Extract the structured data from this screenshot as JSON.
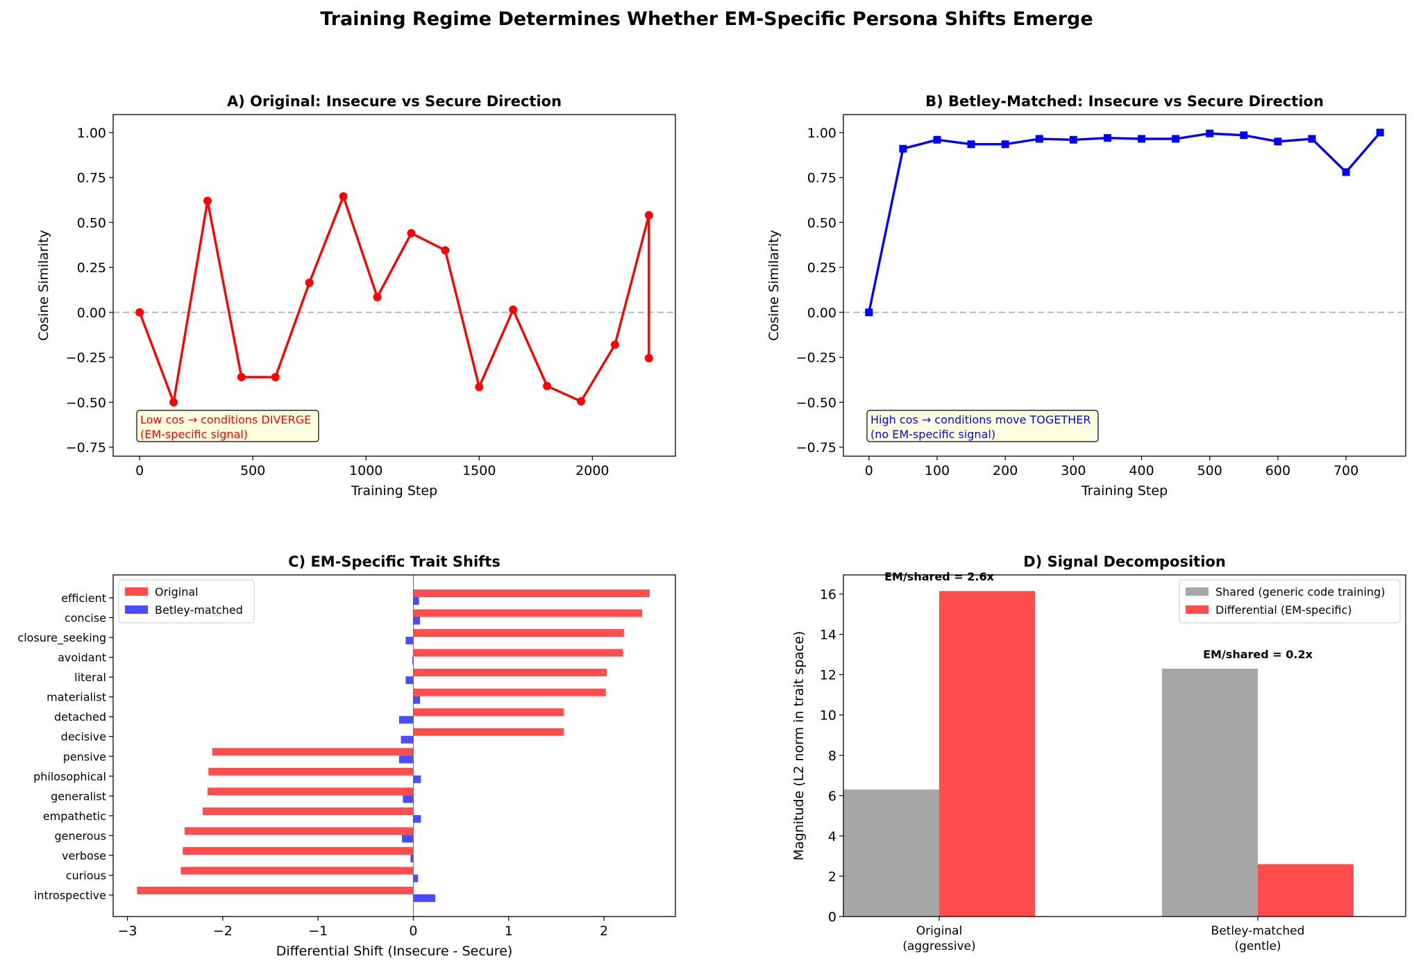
{
  "figure_title": "Training Regime Determines Whether EM-Specific Persona Shifts Emerge",
  "colors": {
    "red": "#ff0000",
    "blue": "#0000ff",
    "bar_red": "#ff4c4c",
    "bar_blue": "#4c4cff",
    "gray": "#a6a6a6",
    "zero_line": "#bfbfbf",
    "note_bg": "#ffffe0"
  },
  "chart_data": [
    {
      "id": "A",
      "type": "line",
      "title": "A) Original: Insecure vs Secure Direction",
      "xlabel": "Training Step",
      "ylabel": "Cosine Similarity",
      "xlim": [
        -117,
        2367
      ],
      "ylim": [
        -0.8,
        1.1
      ],
      "xticks": [
        0,
        500,
        1000,
        1500,
        2000
      ],
      "yticks": [
        1.0,
        0.75,
        0.5,
        0.25,
        0.0,
        -0.25,
        -0.5,
        -0.75
      ],
      "ytick_labels": [
        "1.00",
        "0.75",
        "0.50",
        "0.25",
        "0.00",
        "−0.25",
        "−0.50",
        "−0.75"
      ],
      "marker": "circle",
      "color": "#ff0000",
      "x": [
        0,
        150,
        300,
        450,
        600,
        750,
        900,
        1050,
        1200,
        1350,
        1500,
        1650,
        1800,
        1950,
        2100,
        2250,
        2250
      ],
      "y": [
        0.0,
        -0.5,
        0.62,
        -0.36,
        -0.36,
        0.165,
        0.645,
        0.085,
        0.44,
        0.345,
        -0.415,
        0.015,
        -0.41,
        -0.495,
        -0.18,
        0.54,
        -0.255
      ],
      "annotation": [
        "Low cos → conditions DIVERGE",
        "(EM-specific signal)"
      ]
    },
    {
      "id": "B",
      "type": "line",
      "title": "B) Betley-Matched: Insecure vs Secure Direction",
      "xlabel": "Training Step",
      "ylabel": "Cosine Similarity",
      "xlim": [
        -37.5,
        787.5
      ],
      "ylim": [
        -0.8,
        1.1
      ],
      "xticks": [
        0,
        100,
        200,
        300,
        400,
        500,
        600,
        700
      ],
      "yticks": [
        1.0,
        0.75,
        0.5,
        0.25,
        0.0,
        -0.25,
        -0.5,
        -0.75
      ],
      "ytick_labels": [
        "1.00",
        "0.75",
        "0.50",
        "0.25",
        "0.00",
        "−0.25",
        "−0.50",
        "−0.75"
      ],
      "marker": "square",
      "color": "#0000ff",
      "x": [
        0,
        50,
        100,
        150,
        200,
        250,
        300,
        350,
        400,
        450,
        500,
        550,
        600,
        650,
        700,
        750
      ],
      "y": [
        0.0,
        0.91,
        0.96,
        0.935,
        0.935,
        0.965,
        0.96,
        0.97,
        0.965,
        0.965,
        0.995,
        0.985,
        0.95,
        0.965,
        0.78,
        1.0
      ],
      "annotation": [
        "High cos → conditions move TOGETHER",
        "(no EM-specific signal)"
      ]
    },
    {
      "id": "C",
      "type": "bar",
      "orientation": "horizontal",
      "title": "C) EM-Specific Trait Shifts",
      "xlabel": "Differential Shift (Insecure - Secure)",
      "xlim": [
        -3.15,
        2.75
      ],
      "xticks": [
        -3,
        -2,
        -1,
        0,
        1,
        2
      ],
      "xtick_labels": [
        "−3",
        "−2",
        "−1",
        "0",
        "1",
        "2"
      ],
      "categories": [
        "efficient",
        "concise",
        "closure_seeking",
        "avoidant",
        "literal",
        "materialist",
        "detached",
        "decisive",
        "pensive",
        "philosophical",
        "generalist",
        "empathetic",
        "generous",
        "verbose",
        "curious",
        "introspective"
      ],
      "series": [
        {
          "name": "Original",
          "color": "#ff4c4c",
          "values": [
            2.48,
            2.4,
            2.21,
            2.2,
            2.03,
            2.02,
            1.58,
            1.58,
            -2.11,
            -2.15,
            -2.16,
            -2.21,
            -2.4,
            -2.42,
            -2.44,
            -2.9
          ]
        },
        {
          "name": "Betley-matched",
          "color": "#4c4cff",
          "values": [
            0.06,
            0.07,
            -0.08,
            -0.01,
            -0.08,
            0.07,
            -0.15,
            -0.13,
            -0.15,
            0.08,
            -0.11,
            0.08,
            -0.12,
            -0.03,
            0.05,
            0.23
          ]
        }
      ],
      "legend": "upper-left"
    },
    {
      "id": "D",
      "type": "bar",
      "title": "D) Signal Decomposition",
      "ylabel": "Magnitude (L2 norm in trait space)",
      "ylim": [
        0,
        16.95
      ],
      "yticks": [
        0,
        2,
        4,
        6,
        8,
        10,
        12,
        14,
        16
      ],
      "categories": [
        "Original\n(aggressive)",
        "Betley-matched\n(gentle)"
      ],
      "category_lines": [
        [
          "Original",
          "(aggressive)"
        ],
        [
          "Betley-matched",
          "(gentle)"
        ]
      ],
      "series": [
        {
          "name": "Shared (generic code training)",
          "color": "#a6a6a6",
          "values": [
            6.3,
            12.3
          ]
        },
        {
          "name": "Differential (EM-specific)",
          "color": "#ff4c4c",
          "values": [
            16.15,
            2.6
          ]
        }
      ],
      "bar_annotations": [
        "EM/shared = 2.6x",
        "EM/shared = 0.2x"
      ],
      "legend": "upper-right"
    }
  ]
}
